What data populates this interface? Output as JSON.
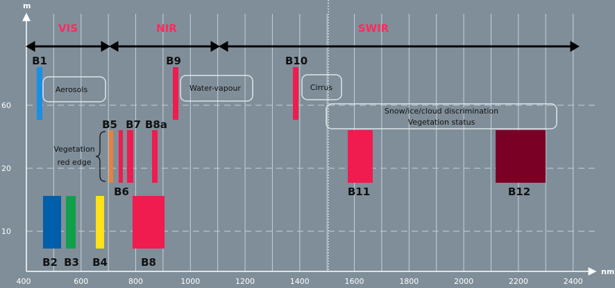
{
  "chart_data": {
    "type": "bar",
    "title": "",
    "xlabel": "nm",
    "ylabel": "m",
    "xlim": [
      400,
      2480
    ],
    "x_ticks": [
      "400",
      "600",
      "800",
      "1000",
      "1200",
      "1400",
      "1600",
      "1800",
      "2000",
      "2200",
      "2400"
    ],
    "y_ticks": [
      "10",
      "20",
      "60"
    ],
    "grid": true,
    "regions": [
      {
        "label": "VIS",
        "range": [
          400,
          750
        ],
        "color": "#ff2b5e"
      },
      {
        "label": "NIR",
        "range": [
          750,
          1170
        ],
        "color": "#ff2b5e"
      },
      {
        "label": "SWIR",
        "range": [
          1170,
          2480
        ],
        "color": "#ff2b5e"
      }
    ],
    "series": [
      {
        "name": "B1",
        "center_nm": 443,
        "width_nm": 20,
        "resolution_m": 60,
        "color": "#1a8fe3"
      },
      {
        "name": "B2",
        "center_nm": 490,
        "width_nm": 65,
        "resolution_m": 10,
        "color": "#005eab"
      },
      {
        "name": "B3",
        "center_nm": 560,
        "width_nm": 35,
        "resolution_m": 10,
        "color": "#10a04b"
      },
      {
        "name": "B4",
        "center_nm": 665,
        "width_nm": 30,
        "resolution_m": 10,
        "color": "#ffe21a"
      },
      {
        "name": "B5",
        "center_nm": 705,
        "width_nm": 15,
        "resolution_m": 20,
        "color": "#e8813a"
      },
      {
        "name": "B6",
        "center_nm": 740,
        "width_nm": 15,
        "resolution_m": 20,
        "color": "#f01b4e"
      },
      {
        "name": "B7",
        "center_nm": 783,
        "width_nm": 20,
        "resolution_m": 20,
        "color": "#f01b4e"
      },
      {
        "name": "B8",
        "center_nm": 842,
        "width_nm": 115,
        "resolution_m": 10,
        "color": "#f01b4e"
      },
      {
        "name": "B8a",
        "center_nm": 865,
        "width_nm": 20,
        "resolution_m": 20,
        "color": "#f01b4e"
      },
      {
        "name": "B9",
        "center_nm": 945,
        "width_nm": 20,
        "resolution_m": 60,
        "color": "#f01b4e"
      },
      {
        "name": "B10",
        "center_nm": 1375,
        "width_nm": 20,
        "resolution_m": 60,
        "color": "#f01b4e"
      },
      {
        "name": "B11",
        "center_nm": 1610,
        "width_nm": 90,
        "resolution_m": 20,
        "color": "#f01b4e"
      },
      {
        "name": "B12",
        "center_nm": 2190,
        "width_nm": 180,
        "resolution_m": 20,
        "color": "#7b0026"
      }
    ],
    "annotations": [
      {
        "text": "Aerosols"
      },
      {
        "text": "Water-vapour"
      },
      {
        "text": "Cirrus"
      },
      {
        "text": "Snow/ice/cloud discrimination"
      },
      {
        "text": "Vegetation status"
      },
      {
        "text": "Vegetation"
      },
      {
        "text": "red edge"
      }
    ]
  },
  "colors": {
    "background": "#7f8e99",
    "grid": "#c9d2d9",
    "axis": "#ffffff",
    "arrow": "#000000",
    "region_label": "#ff2b5e"
  }
}
